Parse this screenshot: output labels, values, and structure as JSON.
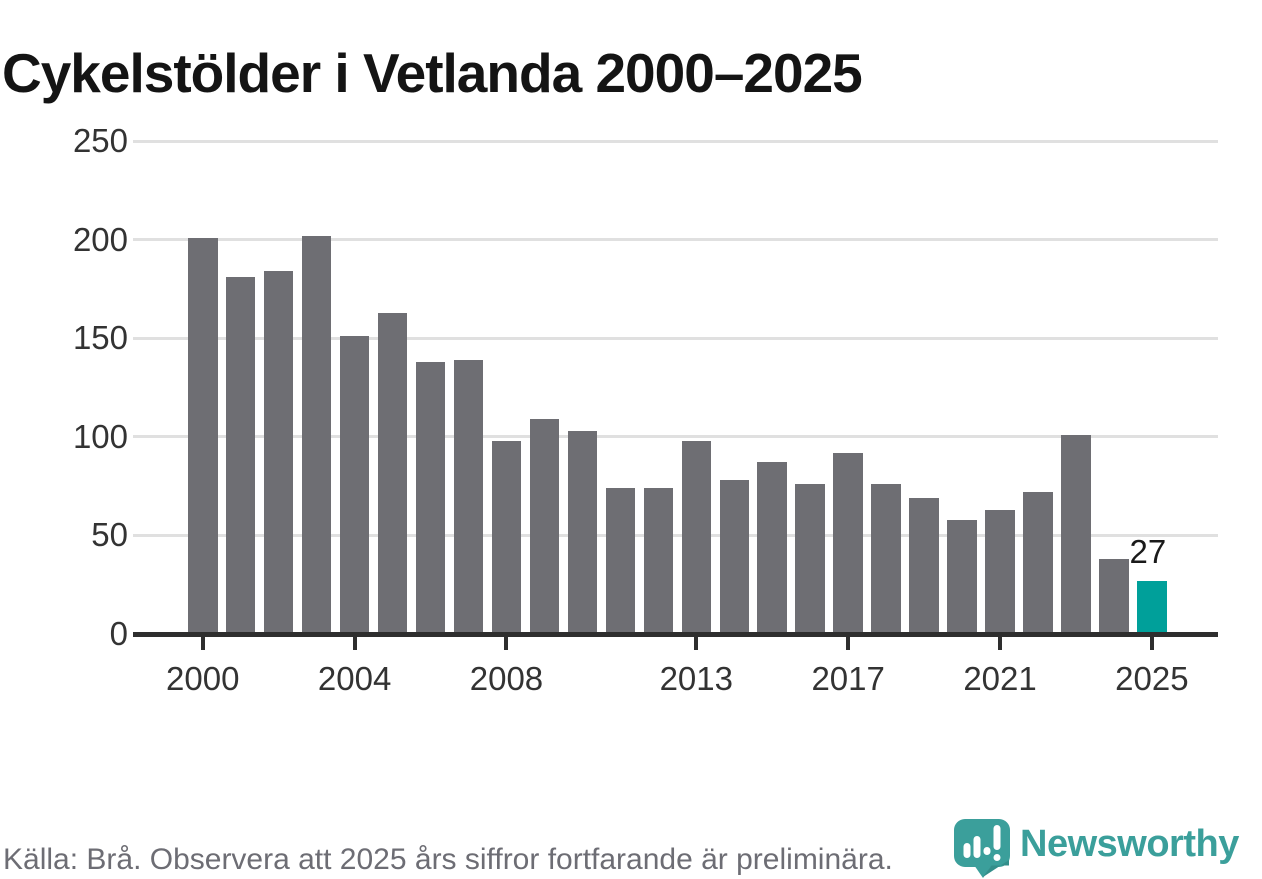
{
  "title": "Cykelstölder i Vetlanda 2000–2025",
  "footer": {
    "source_note": "Källa: Brå. Observera att 2025 års siffror fortfarande är preliminära."
  },
  "branding": {
    "logo_text": "Newsworthy",
    "logo_icon": "newsworthy-speech-bubble-bar-chart-icon"
  },
  "colors": {
    "bar": "#6e6e73",
    "highlight": "#00a09a",
    "gridline": "#e0e0e0",
    "axis": "#2e2e2e",
    "tick_label": "#333333",
    "title": "#141414",
    "footer_text": "#6d6d74",
    "brand_teal": "#3b9f9b",
    "data_label": "#1a1a1a"
  },
  "chart_data": {
    "type": "bar",
    "title": "Cykelstölder i Vetlanda 2000–2025",
    "x": [
      2000,
      2001,
      2002,
      2003,
      2004,
      2005,
      2006,
      2007,
      2008,
      2009,
      2010,
      2011,
      2012,
      2013,
      2014,
      2015,
      2016,
      2017,
      2018,
      2019,
      2020,
      2021,
      2022,
      2023,
      2024,
      2025
    ],
    "values": [
      201,
      181,
      184,
      202,
      151,
      163,
      138,
      139,
      98,
      109,
      103,
      74,
      74,
      98,
      78,
      87,
      76,
      92,
      76,
      69,
      58,
      63,
      72,
      101,
      38,
      27
    ],
    "highlight_x": 2025,
    "data_labels": [
      {
        "x": 2025,
        "label": "27"
      }
    ],
    "y_ticks": [
      0,
      50,
      100,
      150,
      200,
      250
    ],
    "x_tick_labels": [
      2000,
      2004,
      2008,
      2013,
      2017,
      2021,
      2025
    ],
    "ylim": [
      0,
      250
    ],
    "grid": "horizontal",
    "legend": "none",
    "xlabel": "",
    "ylabel": ""
  }
}
